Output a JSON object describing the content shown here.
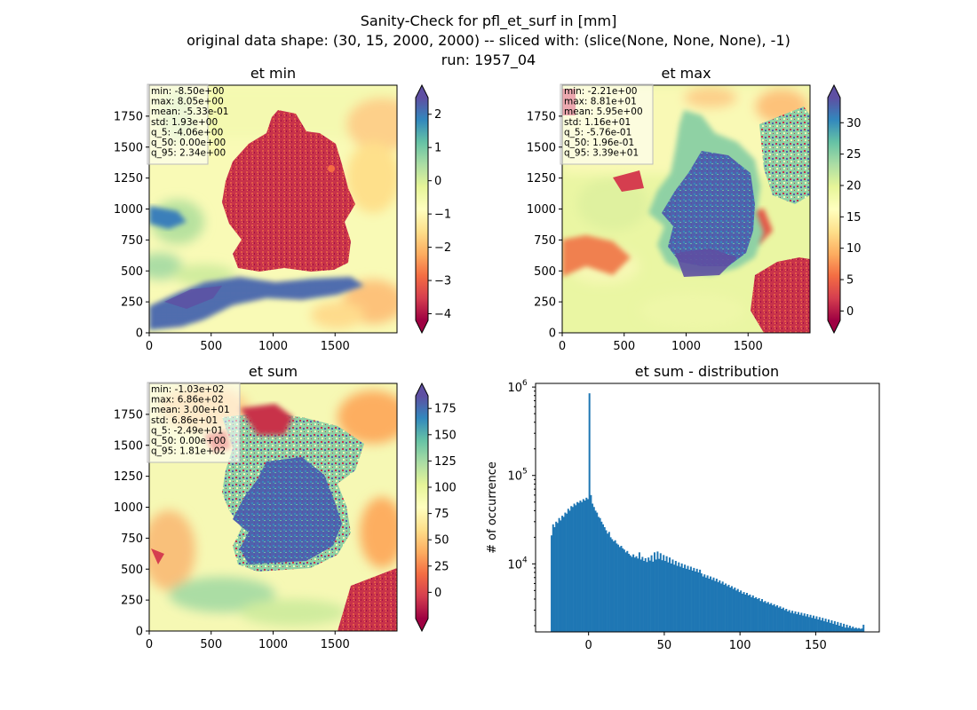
{
  "figure": {
    "title_lines": [
      "Sanity-Check for pfl_et_surf in [mm]",
      "original data shape: (30, 15, 2000, 2000) -- sliced with: (slice(None, None, None), -1)",
      "run: 1957_04"
    ]
  },
  "chart_data": [
    {
      "type": "heatmap",
      "title": "et min",
      "xlim": [
        0,
        2000
      ],
      "ylim": [
        0,
        2000
      ],
      "xticks": [
        "0",
        "500",
        "1000",
        "1500"
      ],
      "yticks": [
        "0",
        "250",
        "500",
        "750",
        "1000",
        "1250",
        "1500",
        "1750"
      ],
      "colorbar": {
        "min": -4.2,
        "max": 2.5,
        "ticks": [
          "−4",
          "−3",
          "−2",
          "−1",
          "0",
          "1",
          "2"
        ],
        "tick_values": [
          -4,
          -3,
          -2,
          -1,
          0,
          1,
          2
        ],
        "extend": "both",
        "colormap": "Spectral"
      },
      "stats": [
        "min: -8.50e+00",
        "max: 8.05e+00",
        "mean: -5.33e-01",
        "std: 1.93e+00",
        "q_5: -4.06e+00",
        "q_50: 0.00e+00",
        "q_95: 2.34e+00"
      ]
    },
    {
      "type": "heatmap",
      "title": "et max",
      "xlim": [
        0,
        2000
      ],
      "ylim": [
        0,
        2000
      ],
      "xticks": [
        "0",
        "500",
        "1000",
        "1500"
      ],
      "yticks": [
        "0",
        "250",
        "500",
        "750",
        "1000",
        "1250",
        "1500",
        "1750"
      ],
      "colorbar": {
        "min": -1.5,
        "max": 34,
        "ticks": [
          "0",
          "5",
          "10",
          "15",
          "20",
          "25",
          "30"
        ],
        "tick_values": [
          0,
          5,
          10,
          15,
          20,
          25,
          30
        ],
        "extend": "both",
        "colormap": "Spectral"
      },
      "stats": [
        "min: -2.21e+00",
        "max: 8.81e+01",
        "mean: 5.95e+00",
        "std: 1.16e+01",
        "q_5: -5.76e-01",
        "q_50: 1.96e-01",
        "q_95: 3.39e+01"
      ]
    },
    {
      "type": "heatmap",
      "title": "et sum",
      "xlim": [
        0,
        2000
      ],
      "ylim": [
        0,
        2000
      ],
      "xticks": [
        "0",
        "500",
        "1000",
        "1500"
      ],
      "yticks": [
        "0",
        "250",
        "500",
        "750",
        "1000",
        "1250",
        "1500",
        "1750"
      ],
      "colorbar": {
        "min": -25,
        "max": 187,
        "ticks": [
          "0",
          "25",
          "50",
          "75",
          "100",
          "125",
          "150",
          "175"
        ],
        "tick_values": [
          0,
          25,
          50,
          75,
          100,
          125,
          150,
          175
        ],
        "extend": "both",
        "colormap": "Spectral"
      },
      "stats": [
        "min: -1.03e+02",
        "max: 6.86e+02",
        "mean: 3.00e+01",
        "std: 6.86e+01",
        "q_5: -2.49e+01",
        "q_50: 0.00e+00",
        "q_95: 1.81e+02"
      ]
    },
    {
      "type": "bar",
      "title": "et sum - distribution",
      "ylabel": "# of occurrence",
      "y_scale": "log",
      "xlim": [
        -35,
        192
      ],
      "ylim": [
        1700,
        1100000
      ],
      "xticks": [
        0,
        50,
        100,
        150
      ],
      "yticks": [
        {
          "value": 10000,
          "label": "10",
          "exp": "4"
        },
        {
          "value": 100000,
          "label": "10",
          "exp": "5"
        },
        {
          "value": 1000000,
          "label": "10",
          "exp": "6"
        }
      ],
      "bar_color": "#1f77b4",
      "x_start": -25,
      "x_end": 181,
      "bin_width": 1.0,
      "counts": [
        21000,
        28000,
        26000,
        30000,
        29000,
        33000,
        31000,
        35000,
        34000,
        38000,
        37000,
        42000,
        40000,
        45000,
        44000,
        48000,
        46000,
        50000,
        49000,
        52000,
        50000,
        54000,
        52000,
        56000,
        54000,
        850000,
        60000,
        48000,
        44000,
        40000,
        38000,
        34000,
        33000,
        30000,
        28000,
        26000,
        24000,
        22000,
        23000,
        20000,
        19000,
        18000,
        18500,
        17000,
        16500,
        15500,
        16000,
        15000,
        14500,
        13500,
        14000,
        13000,
        12500,
        12000,
        12800,
        11800,
        12200,
        11500,
        13500,
        11200,
        12000,
        10800,
        11600,
        10500,
        11800,
        10900,
        12500,
        10600,
        13500,
        11200,
        13800,
        11400,
        13200,
        11000,
        12600,
        10800,
        12200,
        10400,
        11800,
        10100,
        11200,
        9800,
        10800,
        9500,
        10400,
        9300,
        10100,
        9000,
        9800,
        8800,
        9500,
        8600,
        9300,
        8400,
        9000,
        8200,
        8800,
        8000,
        8600,
        7800,
        7200,
        7600,
        7000,
        7400,
        6800,
        7200,
        6600,
        7000,
        6400,
        6800,
        6200,
        6500,
        6000,
        6300,
        5800,
        6000,
        5600,
        5800,
        5400,
        5600,
        5200,
        5400,
        5000,
        5200,
        4800,
        5000,
        4600,
        4800,
        4500,
        4700,
        4400,
        4500,
        4200,
        4400,
        4100,
        4200,
        4000,
        4100,
        3800,
        4000,
        3700,
        3800,
        3600,
        3700,
        3500,
        3600,
        3400,
        3500,
        3300,
        3400,
        3200,
        3300,
        3100,
        3200,
        3000,
        3100,
        2900,
        3000,
        2800,
        2950,
        2750,
        2900,
        2700,
        2850,
        2650,
        2800,
        2600,
        2750,
        2550,
        2700,
        2500,
        2650,
        2450,
        2600,
        2400,
        2550,
        2350,
        2500,
        2300,
        2450,
        2250,
        2400,
        2200,
        2350,
        2150,
        2300,
        2100,
        2250,
        2050,
        2200,
        2000,
        2150,
        1950,
        2100,
        1900,
        2050,
        1900,
        2000,
        1880,
        1950,
        1860,
        1900,
        1850,
        1880,
        1840,
        1860,
        2050
      ]
    }
  ]
}
